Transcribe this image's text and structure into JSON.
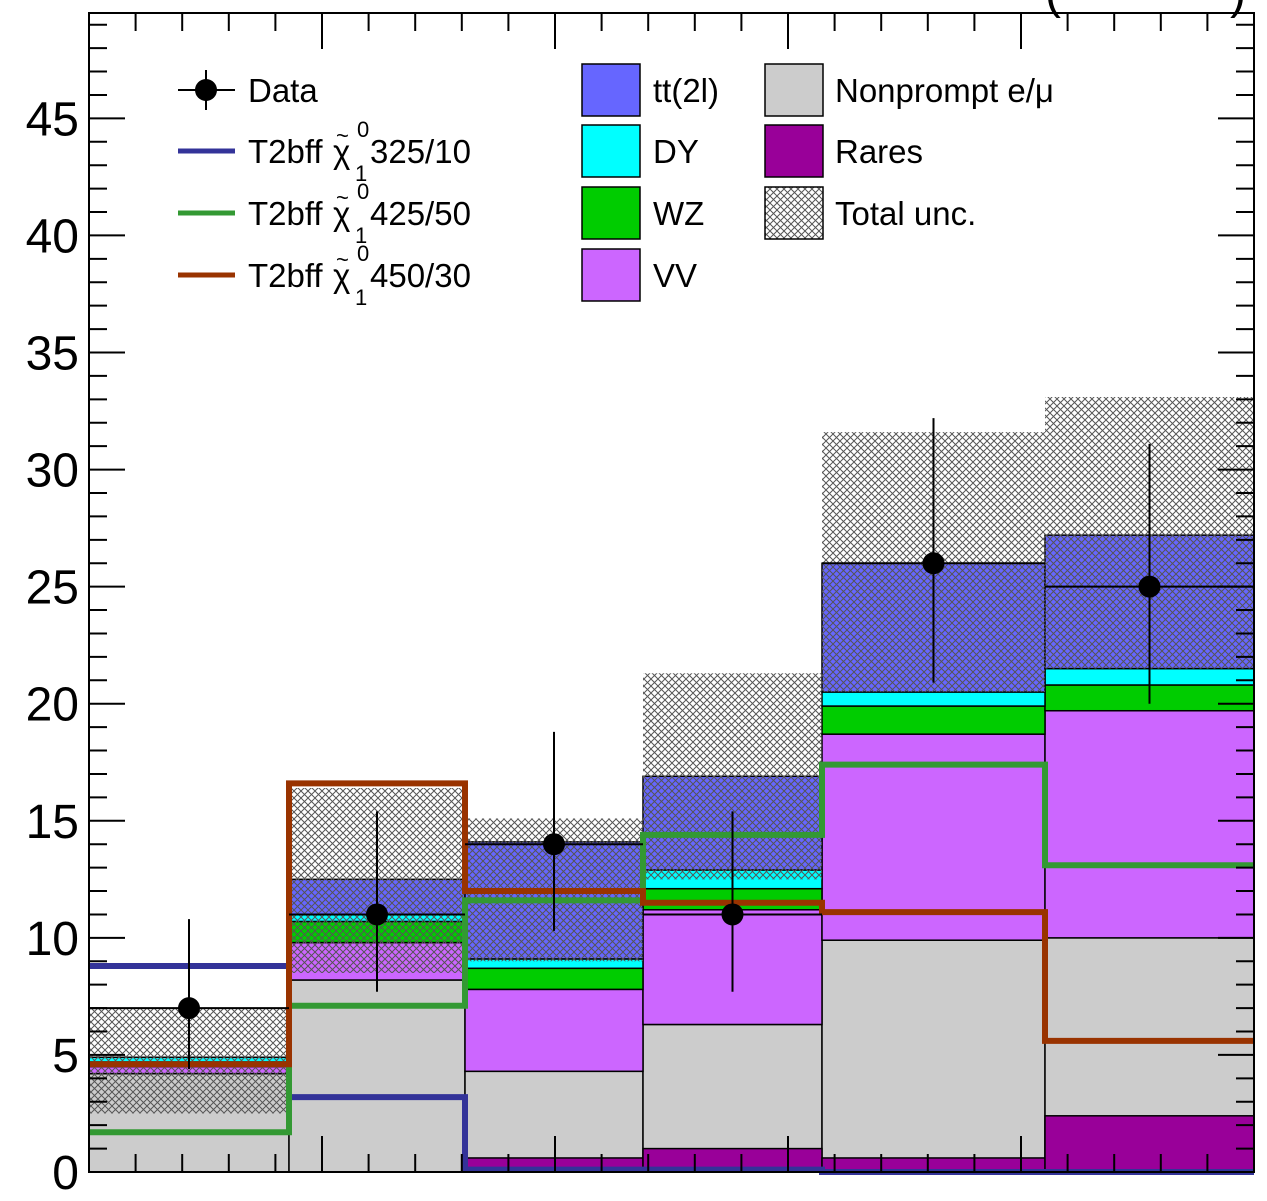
{
  "chart_data": {
    "type": "bar",
    "stacked": true,
    "title": "(",
    "title_tail": ")",
    "bins": [
      0,
      1,
      2,
      3,
      4,
      5,
      6
    ],
    "ylim": [
      0,
      49.5
    ],
    "yticks": [
      0,
      5,
      10,
      15,
      20,
      25,
      30,
      35,
      40,
      45
    ],
    "background": [
      {
        "name": "Nonprompt e/μ",
        "color": "#cccccc",
        "values": [
          4.2,
          8.2,
          4.3,
          6.3,
          9.9,
          10.0
        ]
      },
      {
        "name": "Rares",
        "color": "#990099",
        "values": [
          0,
          0,
          0,
          0,
          0,
          0
        ]
      },
      {
        "name": "VV",
        "color": "#cc66ff",
        "values": [
          0.3,
          1.6,
          3.5,
          4.9,
          8.8,
          9.7
        ]
      },
      {
        "name": "WZ",
        "color": "#00cc00",
        "values": [
          0.2,
          0.9,
          0.9,
          0.9,
          1.2,
          1.1
        ]
      },
      {
        "name": "DY",
        "color": "#00ffff",
        "values": [
          0.2,
          0.3,
          0.4,
          0.8,
          0.6,
          0.7
        ]
      },
      {
        "name": "tt(2l)",
        "color": "#6666ff",
        "values": [
          0,
          1.5,
          5.0,
          4.0,
          5.5,
          5.7
        ]
      }
    ],
    "rares_overlay": [
      0,
      0,
      0.6,
      1.0,
      0.6,
      2.4
    ],
    "unc_low": [
      2.5,
      8.5,
      9.0,
      12.5,
      20.5,
      21.5
    ],
    "unc_high": [
      7.0,
      16.4,
      15.1,
      21.3,
      31.6,
      33.1
    ],
    "data": {
      "name": "Data",
      "values": [
        7,
        11,
        14,
        11,
        26,
        25
      ],
      "err_low": [
        2.6,
        3.3,
        3.7,
        3.3,
        5.1,
        5.0
      ],
      "err_high": [
        3.8,
        4.4,
        4.8,
        4.4,
        6.2,
        6.1
      ]
    },
    "signals": [
      {
        "name": "T2bff",
        "label_suffix": "325/10",
        "color": "#333399",
        "values": [
          8.8,
          3.2,
          0.1,
          0.1,
          0.0,
          0.0
        ]
      },
      {
        "name": "T2bff",
        "label_suffix": "425/50",
        "color": "#339933",
        "values": [
          1.7,
          7.1,
          11.6,
          14.4,
          17.4,
          13.1
        ]
      },
      {
        "name": "T2bff",
        "label_suffix": "450/30",
        "color": "#993300",
        "values": [
          4.6,
          16.6,
          12.0,
          11.5,
          11.1,
          5.6
        ]
      }
    ],
    "signal_symbol": {
      "chi": "χ",
      "tilde": "~",
      "sup": "0",
      "sub": "1"
    },
    "legend": {
      "placement": "top",
      "data_label": "Data",
      "bkg_order": [
        "tt(2l)",
        "DY",
        "WZ",
        "VV",
        "Nonprompt e/μ",
        "Rares"
      ],
      "unc_label": "Total unc."
    }
  }
}
